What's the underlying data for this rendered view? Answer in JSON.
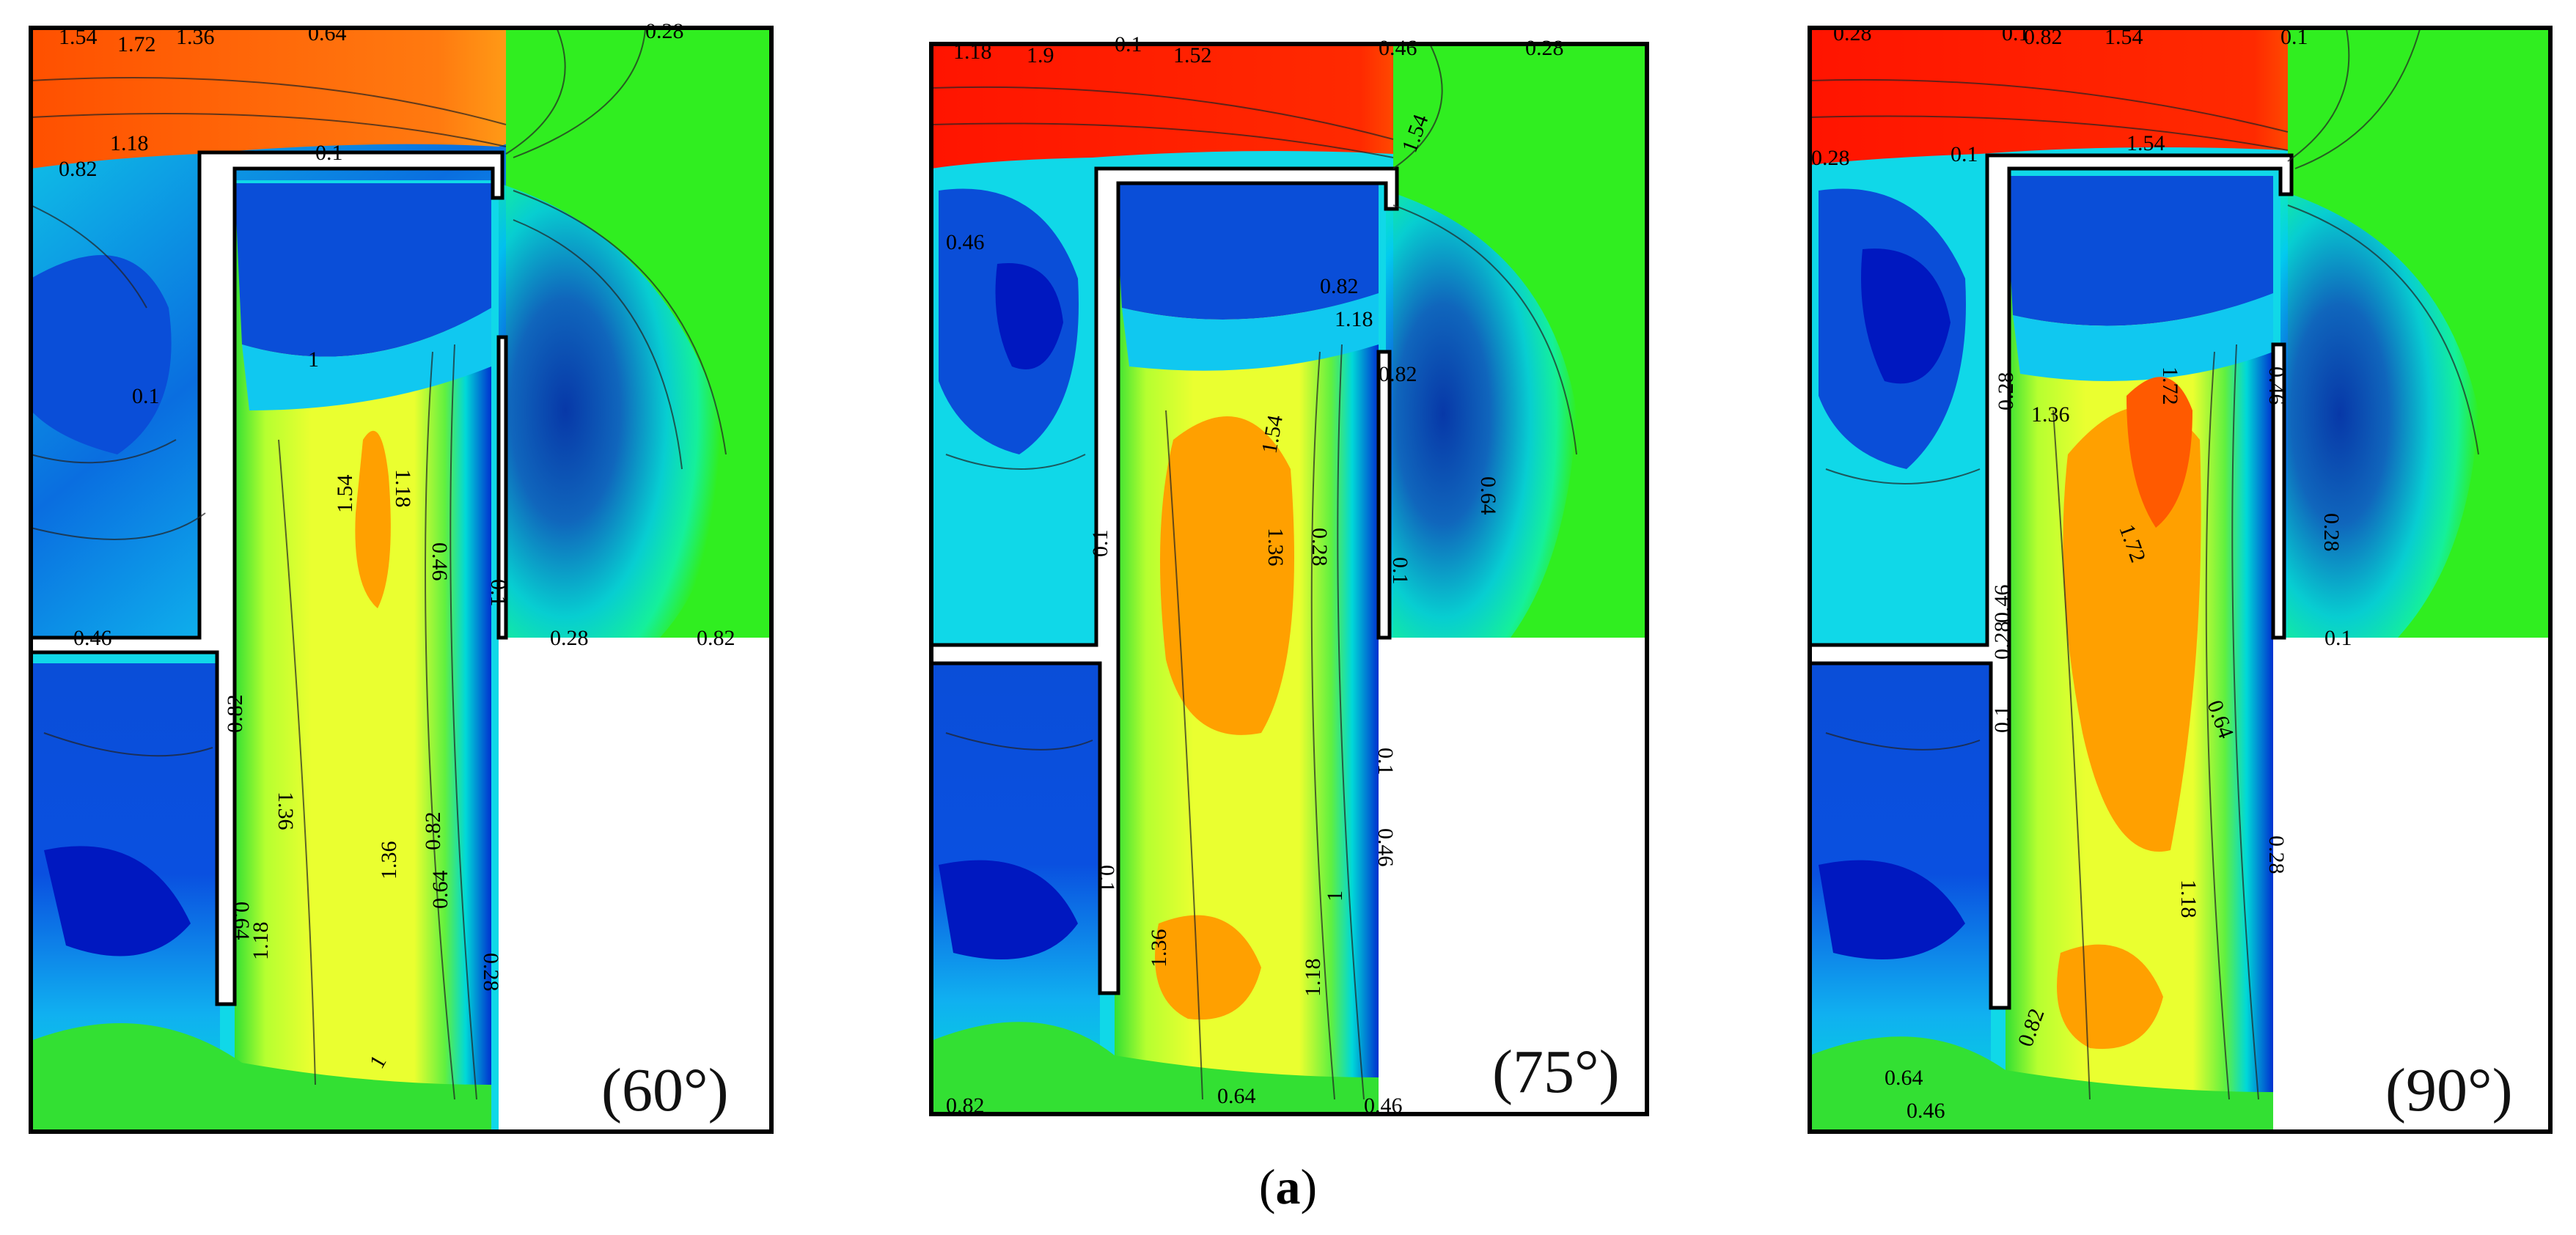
{
  "figure": {
    "caption_open": "(",
    "caption_letter": "a",
    "caption_close": ")"
  },
  "panels": [
    {
      "angle_label": "(60°)",
      "contour_labels": [
        "1.54",
        "1.72",
        "1.36",
        "0.64",
        "0.28",
        "0.1",
        "1.18",
        "0.82",
        "0.1",
        "1",
        "1.54",
        "1.18",
        "0.46",
        "0.46",
        "0.1",
        "0.28",
        "0.82",
        "0.82",
        "1.36",
        "1.36",
        "0.82",
        "0.64",
        "0.28",
        "0.64",
        "1.18",
        "1"
      ]
    },
    {
      "angle_label": "(75°)",
      "contour_labels": [
        "1.18",
        "1.9",
        "0.1",
        "1.52",
        "0.46",
        "0.28",
        "1.54",
        "0.46",
        "0.82",
        "1.18",
        "0.82",
        "1.54",
        "1.36",
        "0.28",
        "0.1",
        "0.64",
        "0.1",
        "0.1",
        "0.46",
        "1",
        "1.18",
        "1.36",
        "0.1",
        "0.64",
        "0.82",
        "0.46"
      ]
    },
    {
      "angle_label": "(90°)",
      "contour_labels": [
        "0.28",
        "0.1",
        "1.54",
        "0.28",
        "1.36",
        "1.72",
        "0.46",
        "0.28",
        "0.1",
        "1.72",
        "0.64",
        "0.28",
        "0.1",
        "0.28",
        "1.18",
        "0.82",
        "0.64",
        "0.46",
        "0.46",
        "0.28",
        "0.1",
        "0.82",
        "1.54",
        "0.1"
      ]
    }
  ],
  "colors": {
    "red": "#ff1a00",
    "orange": "#ff9a00",
    "yellow": "#e8ff3a",
    "green": "#33ee22",
    "cyan": "#00e5e5",
    "blue": "#0a4ed8",
    "deep_blue": "#0018c0"
  }
}
